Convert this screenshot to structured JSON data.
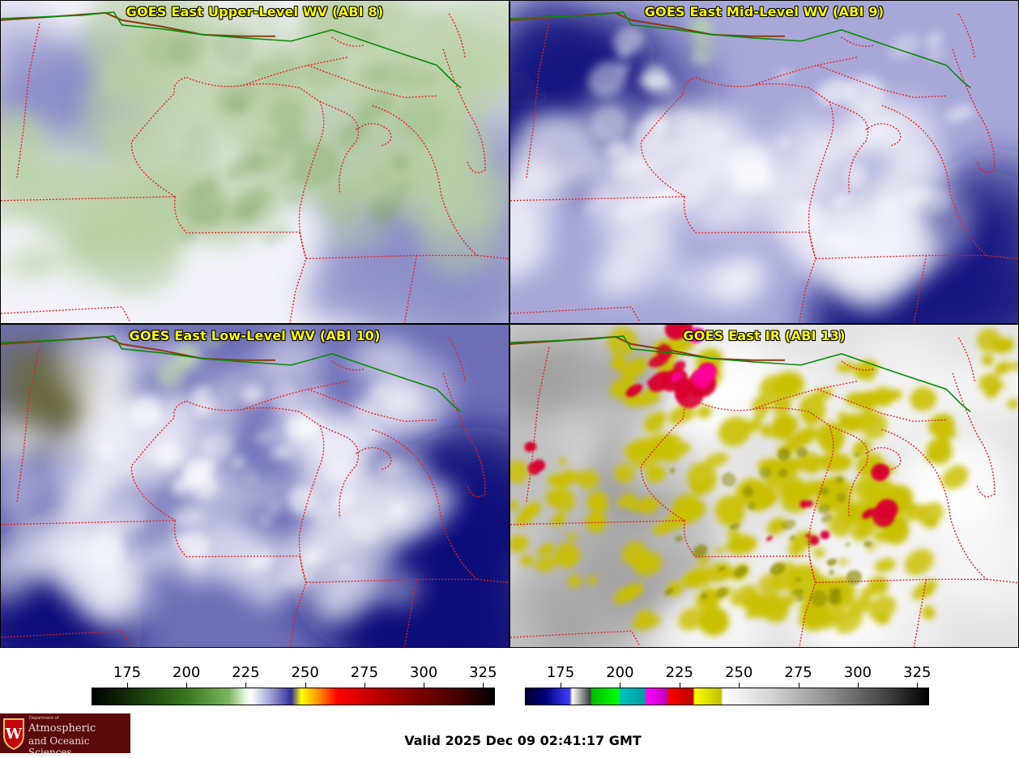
{
  "panels": [
    {
      "title": "GOES East Upper-Level WV (ABI 8)",
      "style": "wv-upper",
      "colors": {
        "base": "#f2f2f8",
        "moist": "#b9cfa6",
        "dry": "#8e8ec8"
      }
    },
    {
      "title": "GOES East Mid-Level WV (ABI 9)",
      "style": "wv-mid",
      "colors": {
        "base": "#a8a8d8",
        "moist": "#f4f4fa",
        "dry": "#1a1a80"
      }
    },
    {
      "title": "GOES East Low-Level WV (ABI 10)",
      "style": "wv-low",
      "colors": {
        "base": "#6e6eb6",
        "moist": "#f4f4fa",
        "dry": "#10107a"
      }
    },
    {
      "title": "GOES East IR (ABI 13)",
      "style": "ir",
      "colors": {
        "base": "#e4e4e4",
        "cloud": "#c8c000",
        "cold": "#d80030"
      }
    }
  ],
  "colorbars": {
    "wv": {
      "ticks": [
        "175",
        "200",
        "225",
        "250",
        "275",
        "300",
        "325"
      ],
      "min": 160,
      "max": 330
    },
    "ir": {
      "ticks": [
        "175",
        "200",
        "225",
        "250",
        "275",
        "300",
        "325"
      ],
      "min": 160,
      "max": 330
    }
  },
  "logo": {
    "dept": "Department of",
    "line1": "Atmospheric",
    "line2": "and Oceanic Sciences",
    "seal_letter": "W"
  },
  "valid_time": "Valid 2025 Dec 09 02:41:17 GMT",
  "colors": {
    "state_border": "#e02020",
    "canada_border": "#0a8a0a",
    "coast": "#8a3a10",
    "title_text": "#ffff00"
  }
}
